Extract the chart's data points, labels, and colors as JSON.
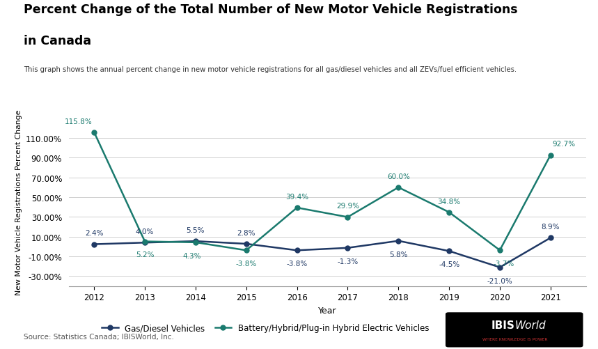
{
  "years": [
    2012,
    2013,
    2014,
    2015,
    2016,
    2017,
    2018,
    2019,
    2020,
    2021
  ],
  "gas_diesel": [
    2.4,
    4.0,
    5.5,
    2.8,
    -3.8,
    -1.3,
    5.8,
    -4.5,
    -21.0,
    8.9
  ],
  "zev": [
    115.8,
    5.2,
    4.3,
    -3.8,
    39.4,
    29.9,
    60.0,
    34.8,
    -3.7,
    92.7
  ],
  "gas_diesel_labels": [
    "2.4%",
    "4.0%",
    "5.5%",
    "2.8%",
    "-3.8%",
    "-1.3%",
    "5.8%",
    "-4.5%",
    "-21.0%",
    "8.9%"
  ],
  "zev_labels": [
    "115.8%",
    "5.2%",
    "4.3%",
    "-3.8%",
    "39.4%",
    "29.9%",
    "60.0%",
    "34.8%",
    "-3.7%",
    "92.7%"
  ],
  "gas_diesel_color": "#1f3864",
  "zev_color": "#1a7a6e",
  "title_line1": "Percent Change of the Total Number of New Motor Vehicle Registrations",
  "title_line2": "in Canada",
  "subtitle": "This graph shows the annual percent change in new motor vehicle registrations for all gas/diesel vehicles and all ZEVs/fuel efficient vehicles.",
  "xlabel": "Year",
  "ylabel": "New Motor Vehicle Registrations Percent Change",
  "legend_gas": "Gas/Diesel Vehicles",
  "legend_zev": "Battery/Hybrid/Plug-in Hybrid Electric Vehicles",
  "source": "Source: Statistics Canada; IBISWorld, Inc.",
  "ylim": [
    -40,
    130
  ],
  "yticks": [
    -30,
    -10,
    10,
    30,
    50,
    70,
    90,
    110
  ],
  "background_color": "#ffffff",
  "grid_color": "#d0d0d0"
}
